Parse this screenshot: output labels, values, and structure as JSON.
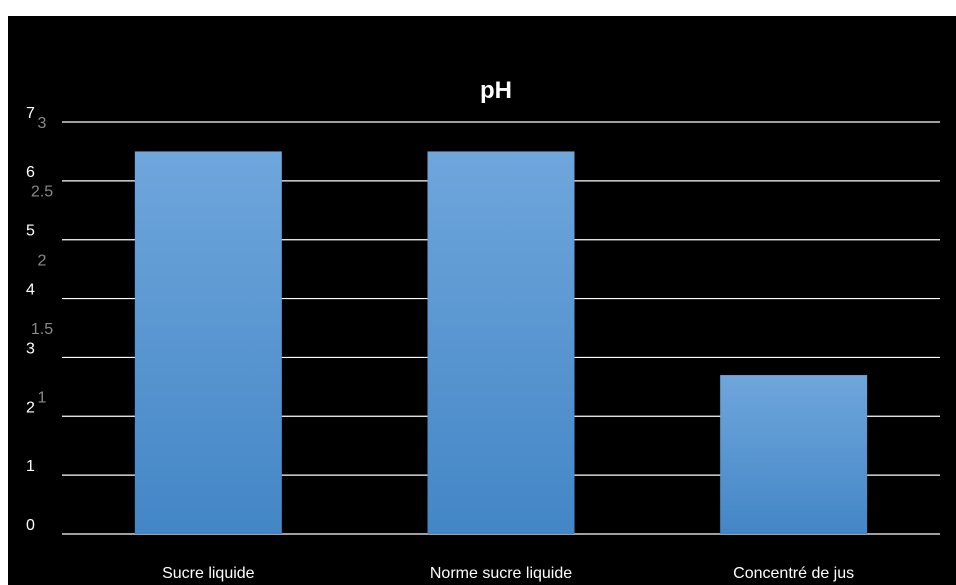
{
  "chart_data": {
    "type": "bar",
    "title": "pH",
    "categories": [
      "Sucre liquide",
      "Norme sucre liquide",
      "Concentré de jus"
    ],
    "series": [
      {
        "values": [
          6.5,
          6.5,
          2.7
        ]
      }
    ],
    "ylim": [
      0,
      7
    ],
    "y_ticks": [
      "0",
      "1",
      "2",
      "3",
      "4",
      "5",
      "6",
      "7"
    ],
    "secondary_ylim": [
      0,
      3
    ],
    "secondary_y_ticks": [
      "1",
      "1.5",
      "2",
      "2.5",
      "3"
    ],
    "secondary_tick_values": [
      1,
      1.5,
      2,
      2.5,
      3
    ],
    "grid": true,
    "colors": {
      "bar_top": "#6fa6dc",
      "bar_bottom": "#4386c6",
      "background": "#000000",
      "text": "#ffffff",
      "secondary_text": "#8a8a8a"
    }
  }
}
